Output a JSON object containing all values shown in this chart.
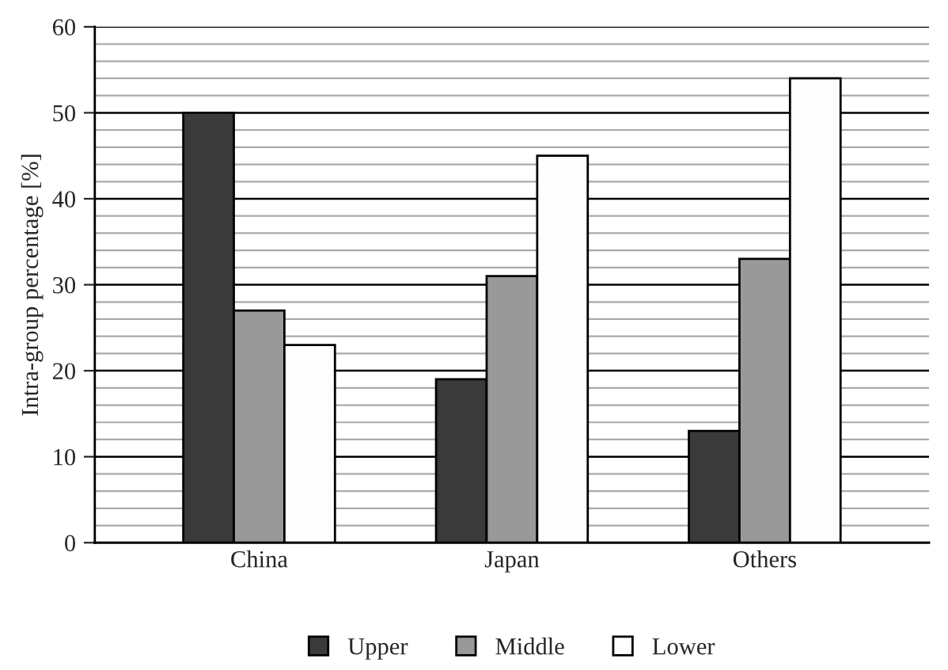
{
  "chart_data": {
    "type": "bar",
    "ylabel": "Intra-group percentage [%]",
    "categories": [
      "China",
      "Japan",
      "Others"
    ],
    "series": [
      {
        "name": "Upper",
        "color": "#3a3a3a",
        "values": [
          50,
          19,
          13
        ]
      },
      {
        "name": "Middle",
        "color": "#999999",
        "values": [
          27,
          31,
          33
        ]
      },
      {
        "name": "Lower",
        "color": "#fdfdfd",
        "values": [
          23,
          45,
          54
        ]
      }
    ],
    "ylim": [
      0,
      60
    ],
    "yticks": [
      0,
      10,
      20,
      30,
      40,
      50,
      60
    ],
    "grid": "y",
    "legend": "bottom"
  }
}
